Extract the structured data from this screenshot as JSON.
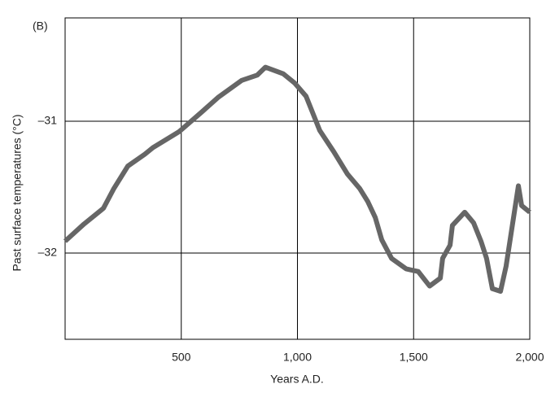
{
  "chart_data": {
    "type": "line",
    "panel_label": "(B)",
    "x_label": "Years A.D.",
    "y_label": "Past surface temperatures (°C)",
    "xlim": [
      0,
      2000
    ],
    "ylim": [
      -32.654,
      -30.216
    ],
    "xticks": [
      500,
      {
        "value": 1000,
        "label": "1,000"
      },
      {
        "value": 1500,
        "label": "1,500"
      },
      {
        "value": 2000,
        "label": "2,000"
      }
    ],
    "yticks": [
      {
        "value": -31,
        "label": "–31"
      },
      {
        "value": -32,
        "label": "–32"
      }
    ],
    "grid": true,
    "series": [
      {
        "color": "#666666",
        "x": [
          0,
          81,
          165,
          210,
          270,
          343,
          378,
          490,
          588,
          658,
          760,
          827,
          862,
          939,
          988,
          1037,
          1096,
          1156,
          1215,
          1268,
          1303,
          1335,
          1363,
          1405,
          1468,
          1520,
          1569,
          1615,
          1625,
          1657,
          1667,
          1720,
          1758,
          1790,
          1814,
          1839,
          1874,
          1898,
          1951,
          1965,
          2000
        ],
        "values": [
          -31.91,
          -31.78,
          -31.66,
          -31.51,
          -31.34,
          -31.25,
          -31.2,
          -31.08,
          -30.93,
          -30.82,
          -30.69,
          -30.65,
          -30.59,
          -30.64,
          -30.71,
          -30.81,
          -31.07,
          -31.23,
          -31.4,
          -31.51,
          -31.61,
          -31.73,
          -31.9,
          -32.04,
          -32.12,
          -32.14,
          -32.25,
          -32.19,
          -32.04,
          -31.94,
          -31.79,
          -31.69,
          -31.77,
          -31.91,
          -32.04,
          -32.27,
          -32.29,
          -32.1,
          -31.49,
          -31.64,
          -31.69
        ]
      }
    ]
  }
}
